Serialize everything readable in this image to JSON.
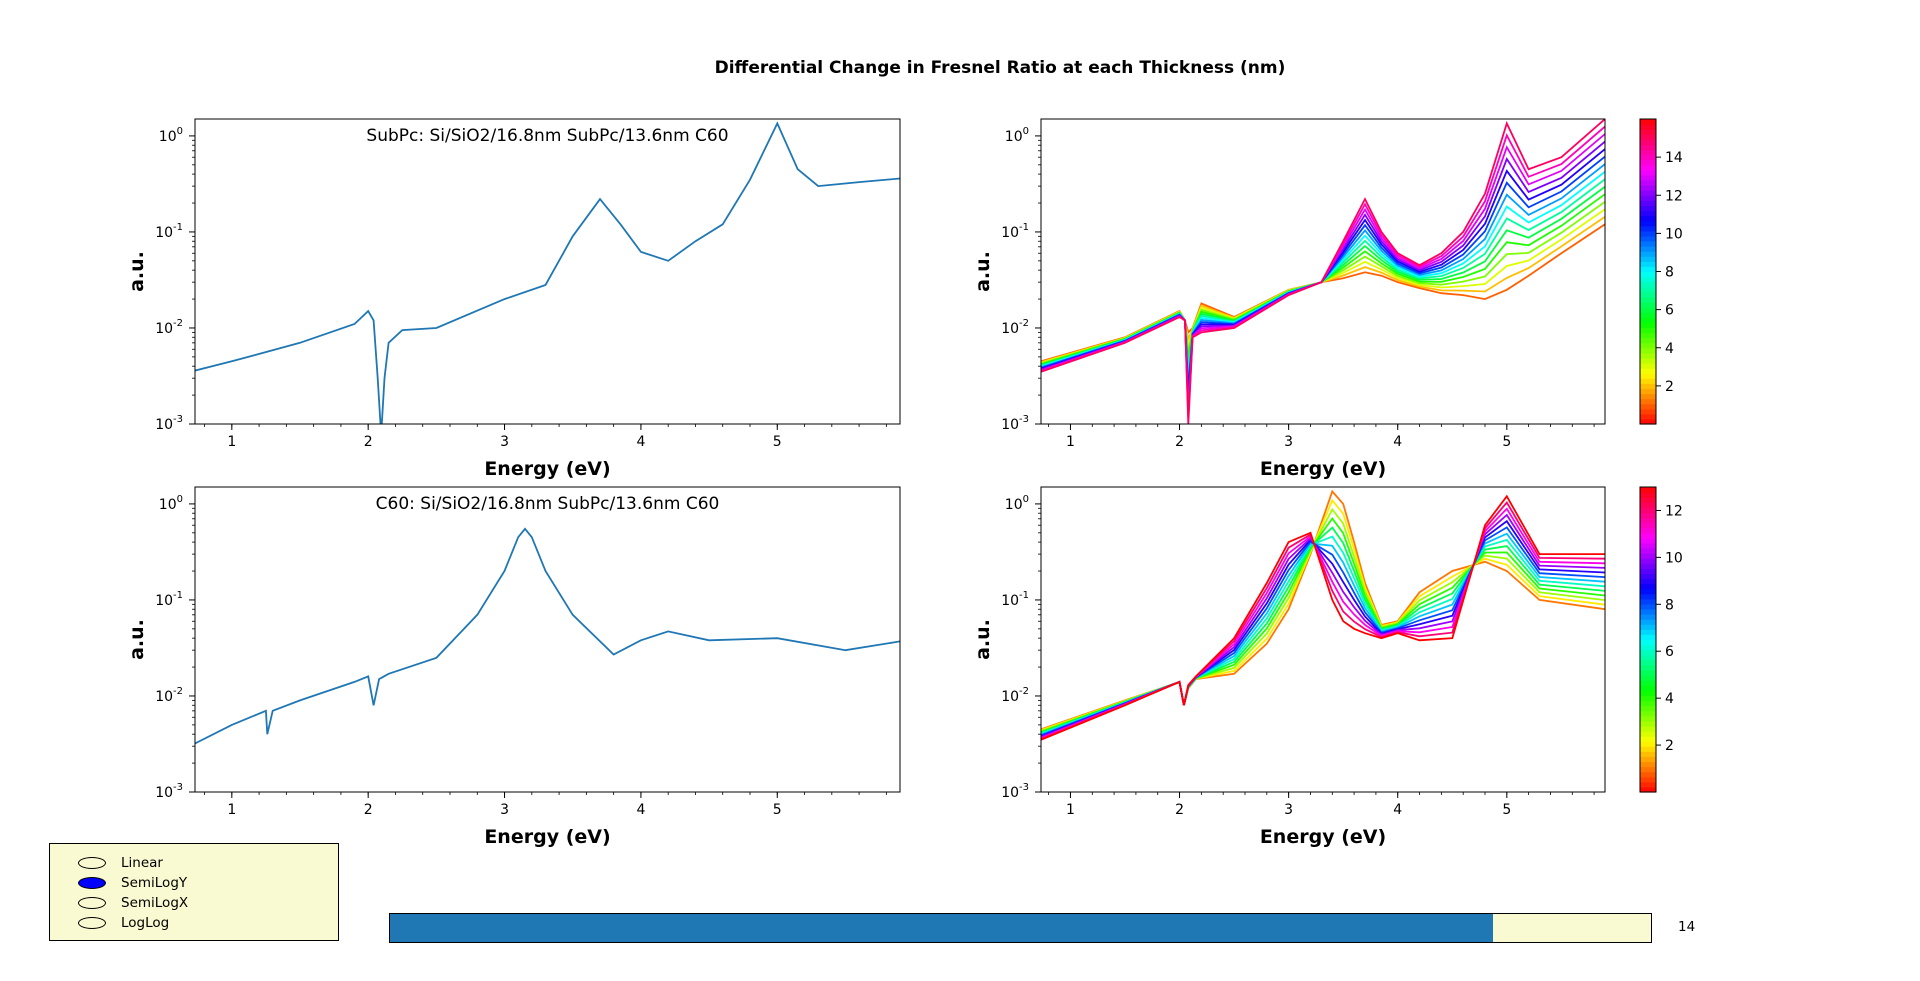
{
  "figure_title": "Differential Change in Fresnel Ratio at each Thickness (nm)",
  "colors": {
    "single_line": "#1f77b4",
    "widget_bg": "#fafad2",
    "radio_selected": "#0000ff"
  },
  "chart_data": [
    {
      "type": "line",
      "title": "SubPc: Si/SiO2/16.8nm SubPc/13.6nm C60",
      "xlabel": "Energy (eV)",
      "ylabel": "a.u.",
      "xlim": [
        0.73,
        5.9
      ],
      "ylim": [
        0.001,
        1.5
      ],
      "yscale": "log",
      "xticks": [
        1,
        2,
        3,
        4,
        5
      ],
      "yticks": [
        "10^{-3}",
        "10^{-2}",
        "10^{-1}",
        "10^{0}"
      ],
      "series": [
        {
          "color": "#1f77b4",
          "x": [
            0.73,
            1.0,
            1.5,
            1.9,
            2.0,
            2.04,
            2.07,
            2.09,
            2.1,
            2.12,
            2.15,
            2.25,
            2.5,
            3.0,
            3.3,
            3.5,
            3.7,
            3.85,
            4.0,
            4.2,
            4.4,
            4.6,
            4.8,
            5.0,
            5.15,
            5.3,
            5.6,
            5.9
          ],
          "y": [
            0.0036,
            0.0045,
            0.007,
            0.011,
            0.015,
            0.012,
            0.003,
            0.001,
            0.001,
            0.003,
            0.007,
            0.0095,
            0.01,
            0.02,
            0.028,
            0.09,
            0.22,
            0.12,
            0.062,
            0.05,
            0.08,
            0.12,
            0.35,
            1.35,
            0.45,
            0.3,
            0.33,
            0.36
          ]
        }
      ]
    },
    {
      "type": "line",
      "title": "",
      "xlabel": "Energy (eV)",
      "ylabel": "a.u.",
      "xlim": [
        0.73,
        5.9
      ],
      "ylim": [
        0.001,
        1.5
      ],
      "yscale": "log",
      "xticks": [
        1,
        2,
        3,
        4,
        5
      ],
      "yticks": [
        "10^{-3}",
        "10^{-2}",
        "10^{-1}",
        "10^{0}"
      ],
      "colorbar": {
        "ticks": [
          2,
          4,
          6,
          8,
          10,
          12,
          14
        ],
        "range": [
          0,
          16
        ],
        "cmap": "hsv"
      },
      "family": {
        "count": 15,
        "x": [
          0.73,
          1.5,
          2.0,
          2.05,
          2.08,
          2.12,
          2.2,
          2.5,
          3.0,
          3.3,
          3.5,
          3.7,
          3.85,
          4.0,
          4.2,
          4.4,
          4.6,
          4.8,
          5.0,
          5.2,
          5.5,
          5.9
        ],
        "y_first": [
          0.0045,
          0.008,
          0.015,
          0.012,
          0.009,
          0.01,
          0.018,
          0.013,
          0.025,
          0.03,
          0.033,
          0.038,
          0.035,
          0.03,
          0.026,
          0.023,
          0.022,
          0.02,
          0.025,
          0.035,
          0.06,
          0.12
        ],
        "y_last": [
          0.0035,
          0.007,
          0.013,
          0.012,
          0.001,
          0.008,
          0.009,
          0.01,
          0.022,
          0.03,
          0.08,
          0.22,
          0.1,
          0.06,
          0.045,
          0.06,
          0.1,
          0.25,
          1.35,
          0.45,
          0.6,
          1.5
        ]
      }
    },
    {
      "type": "line",
      "title": "C60: Si/SiO2/16.8nm SubPc/13.6nm C60",
      "xlabel": "Energy (eV)",
      "ylabel": "a.u.",
      "xlim": [
        0.73,
        5.9
      ],
      "ylim": [
        0.001,
        1.5
      ],
      "yscale": "log",
      "xticks": [
        1,
        2,
        3,
        4,
        5
      ],
      "yticks": [
        "10^{-3}",
        "10^{-2}",
        "10^{-1}",
        "10^{0}"
      ],
      "series": [
        {
          "color": "#1f77b4",
          "x": [
            0.73,
            1.0,
            1.25,
            1.26,
            1.3,
            1.5,
            1.9,
            2.0,
            2.04,
            2.08,
            2.15,
            2.5,
            2.8,
            3.0,
            3.1,
            3.15,
            3.2,
            3.3,
            3.5,
            3.8,
            4.0,
            4.2,
            4.5,
            5.0,
            5.5,
            5.9
          ],
          "y": [
            0.0032,
            0.005,
            0.007,
            0.004,
            0.007,
            0.009,
            0.014,
            0.016,
            0.008,
            0.015,
            0.017,
            0.025,
            0.07,
            0.2,
            0.45,
            0.55,
            0.45,
            0.2,
            0.07,
            0.027,
            0.038,
            0.047,
            0.038,
            0.04,
            0.03,
            0.037
          ]
        }
      ]
    },
    {
      "type": "line",
      "title": "",
      "xlabel": "Energy (eV)",
      "ylabel": "a.u.",
      "xlim": [
        0.73,
        5.9
      ],
      "ylim": [
        0.001,
        1.5
      ],
      "yscale": "log",
      "xticks": [
        1,
        2,
        3,
        4,
        5
      ],
      "yticks": [
        "10^{-3}",
        "10^{-2}",
        "10^{-1}",
        "10^{0}"
      ],
      "colorbar": {
        "ticks": [
          2,
          4,
          6,
          8,
          10,
          12
        ],
        "range": [
          0,
          13
        ],
        "cmap": "hsv"
      },
      "family": {
        "count": 13,
        "x": [
          0.73,
          1.5,
          2.0,
          2.04,
          2.08,
          2.15,
          2.5,
          2.8,
          3.0,
          3.2,
          3.4,
          3.5,
          3.6,
          3.7,
          3.85,
          4.0,
          4.2,
          4.5,
          4.8,
          5.0,
          5.3,
          5.9
        ],
        "y_first": [
          0.0045,
          0.009,
          0.014,
          0.008,
          0.012,
          0.015,
          0.017,
          0.035,
          0.08,
          0.3,
          1.35,
          1.0,
          0.4,
          0.15,
          0.055,
          0.06,
          0.12,
          0.2,
          0.25,
          0.2,
          0.1,
          0.08
        ],
        "y_last": [
          0.0035,
          0.008,
          0.014,
          0.008,
          0.013,
          0.016,
          0.04,
          0.15,
          0.4,
          0.5,
          0.1,
          0.06,
          0.05,
          0.045,
          0.04,
          0.045,
          0.038,
          0.04,
          0.6,
          1.2,
          0.3,
          0.3
        ]
      }
    }
  ],
  "radio": {
    "options": [
      "Linear",
      "SemiLogY",
      "SemiLogX",
      "LogLog"
    ],
    "selected": "SemiLogY"
  },
  "slider": {
    "value": 14,
    "min": 0,
    "max": 16,
    "label": "14"
  }
}
